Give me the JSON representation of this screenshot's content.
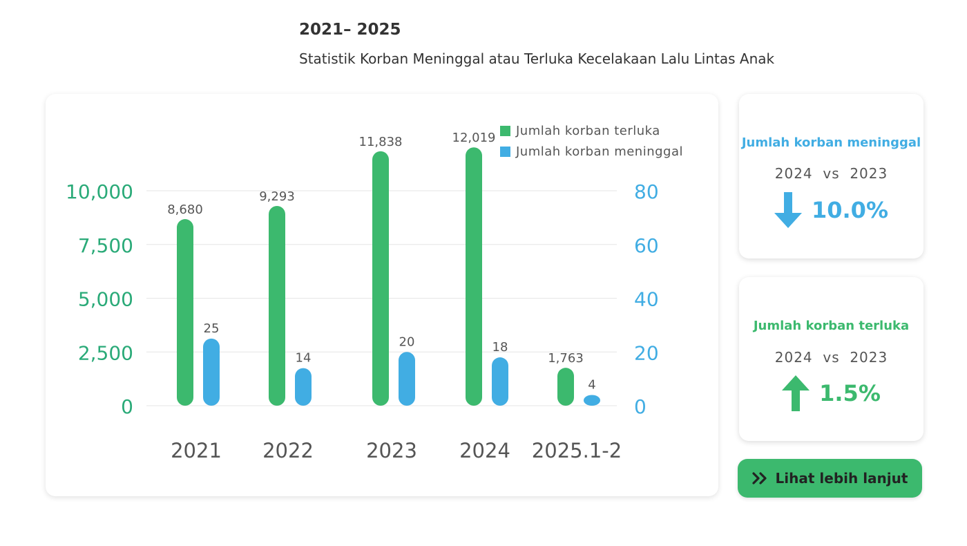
{
  "header": {
    "title": "2021– 2025",
    "subtitle": "Statistik Korban Meninggal atau Terluka Kecelakaan Lalu Lintas Anak"
  },
  "colors": {
    "green": "#3cb96e",
    "blue": "#41ade3",
    "green_axis": "#2aaa78",
    "blue_axis": "#41ade3"
  },
  "chart_data": {
    "type": "bar",
    "categories": [
      "2021",
      "2022",
      "2023",
      "2024",
      "2025.1-2"
    ],
    "series": [
      {
        "name": "Jumlah korban terluka",
        "values": [
          8680,
          9293,
          11838,
          12019,
          1763
        ],
        "labels": [
          "8,680",
          "9,293",
          "11,838",
          "12,019",
          "1,763"
        ],
        "axis": "left"
      },
      {
        "name": "Jumlah korban meninggal",
        "values": [
          25,
          14,
          20,
          18,
          4
        ],
        "labels": [
          "25",
          "14",
          "20",
          "18",
          "4"
        ],
        "axis": "right"
      }
    ],
    "left_axis": {
      "ticks": [
        0,
        2500,
        5000,
        7500,
        10000
      ],
      "tick_labels": [
        "0",
        "2,500",
        "5,000",
        "7,500",
        "10,000"
      ]
    },
    "right_axis": {
      "ticks": [
        0,
        20,
        40,
        60,
        80
      ],
      "tick_labels": [
        "0",
        "20",
        "40",
        "60",
        "80"
      ]
    },
    "grid": true,
    "legend_position": "top-right"
  },
  "legend": [
    {
      "label": "Jumlah korban terluka"
    },
    {
      "label": "Jumlah korban meninggal"
    }
  ],
  "stat_cards": [
    {
      "title": "Jumlah korban meninggal",
      "compare": "2024  vs  2023",
      "direction": "down",
      "value": "10.0%",
      "icon": "arrow-down-icon"
    },
    {
      "title": "Jumlah korban terluka",
      "compare": "2024  vs  2023",
      "direction": "up",
      "value": "1.5%",
      "icon": "arrow-up-icon"
    }
  ],
  "more_button": {
    "label": "Lihat lebih lanjut",
    "icon": "double-chevron-right-icon"
  }
}
